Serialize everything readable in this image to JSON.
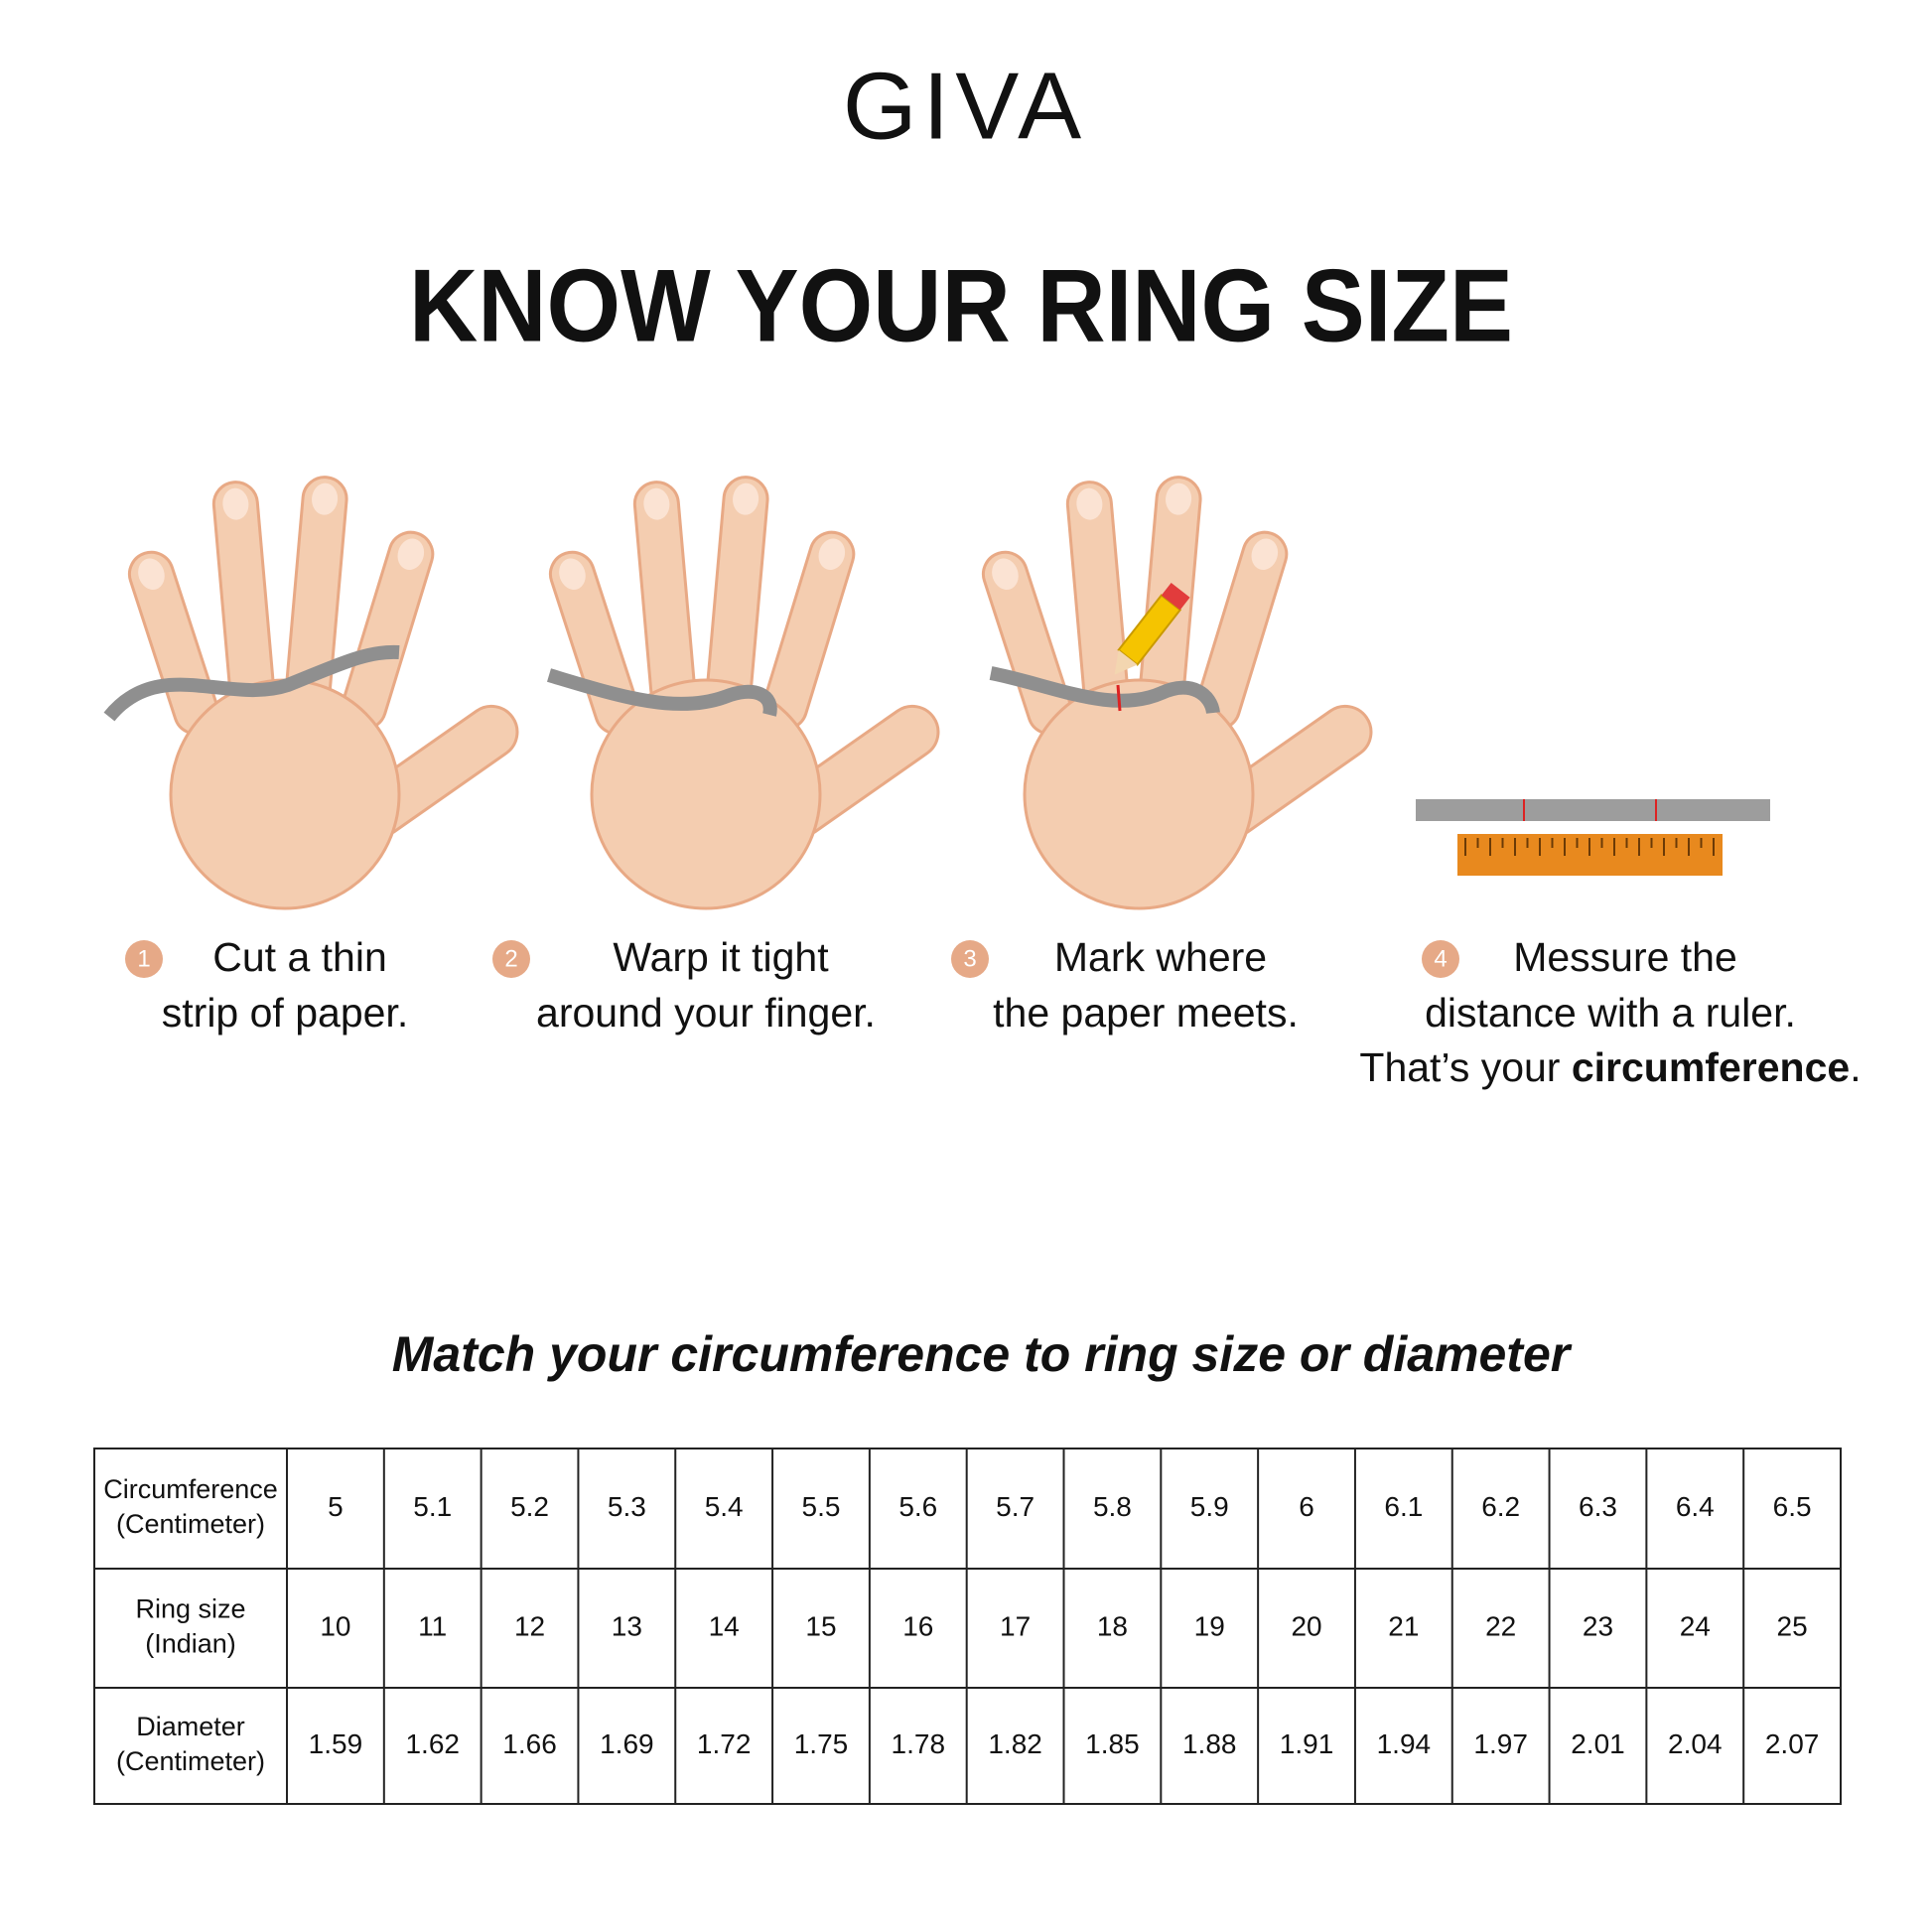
{
  "header": {
    "logo": "GIVA",
    "title": "KNOW YOUR RING SIZE"
  },
  "steps": [
    {
      "number": "1",
      "lines": [
        "Cut a thin",
        "strip of paper."
      ]
    },
    {
      "number": "2",
      "lines": [
        "Warp it tight",
        "around your finger."
      ]
    },
    {
      "number": "3",
      "lines": [
        "Mark where",
        "the paper meets."
      ]
    },
    {
      "number": "4",
      "lines": [
        "Messure the",
        "distance with a ruler."
      ],
      "last_line": {
        "text": "That’s your ",
        "bold": "circumference",
        "end": "."
      }
    }
  ],
  "table": {
    "title": "Match your circumference to ring size or diameter",
    "rows": [
      {
        "label": [
          "Circumference",
          "(Centimeter)"
        ],
        "cells": [
          "5",
          "5.1",
          "5.2",
          "5.3",
          "5.4",
          "5.5",
          "5.6",
          "5.7",
          "5.8",
          "5.9",
          "6",
          "6.1",
          "6.2",
          "6.3",
          "6.4",
          "6.5"
        ]
      },
      {
        "label": [
          "Ring size",
          "(Indian)"
        ],
        "cells": [
          "10",
          "11",
          "12",
          "13",
          "14",
          "15",
          "16",
          "17",
          "18",
          "19",
          "20",
          "21",
          "22",
          "23",
          "24",
          "25"
        ]
      },
      {
        "label": [
          "Diameter",
          "(Centimeter)"
        ],
        "cells": [
          "1.59",
          "1.62",
          "1.66",
          "1.69",
          "1.72",
          "1.75",
          "1.78",
          "1.82",
          "1.85",
          "1.88",
          "1.91",
          "1.94",
          "1.97",
          "2.01",
          "2.04",
          "2.07"
        ]
      }
    ]
  }
}
